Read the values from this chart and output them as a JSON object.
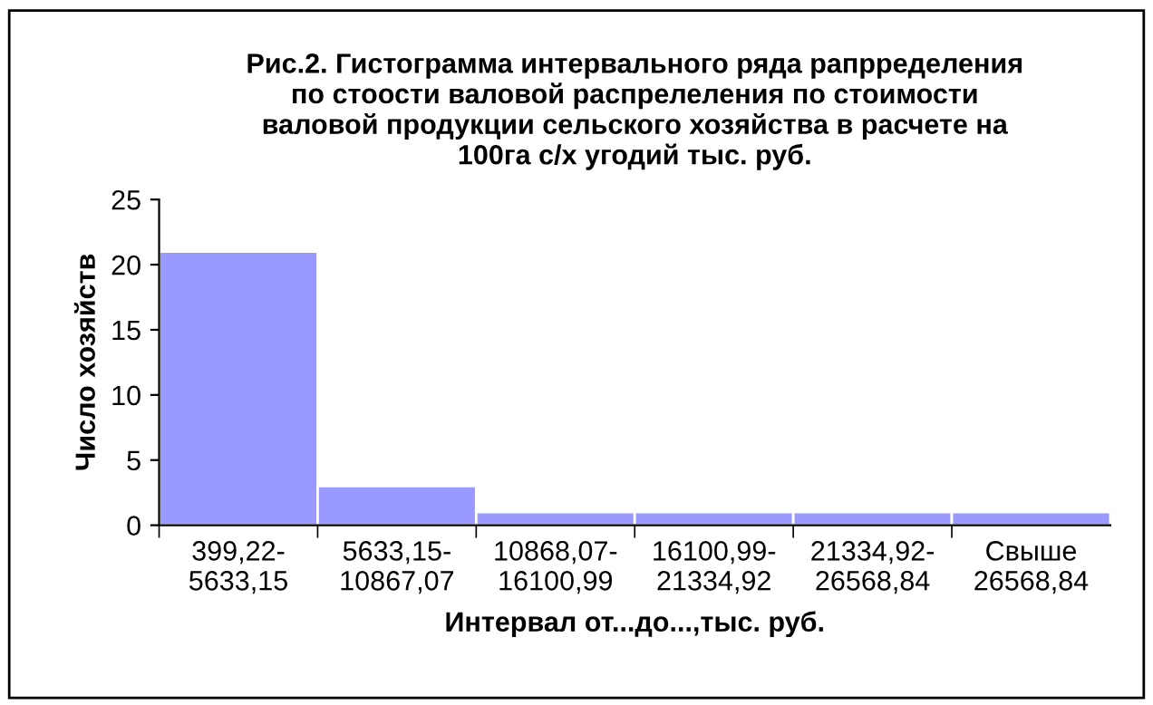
{
  "chart_data": {
    "type": "bar",
    "title": "Рис.2. Гистограмма интервального ряда рапрределения\nпо стоости валовой распрелеления по стоимости\nваловой продукции сельского хозяйства в расчете на\n100га с/х угодий тыс. руб.",
    "xlabel": "Интервал от...до...,тыс. руб.",
    "ylabel": "Число хозяйств",
    "categories": [
      "399,22-\n5633,15",
      "5633,15-\n10867,07",
      "10868,07-\n16100,99",
      "16100,99-\n21334,92",
      "21334,92-\n26568,84",
      "Свыше\n26568,84"
    ],
    "values": [
      21,
      3,
      1,
      1,
      1,
      1
    ],
    "color": "#9999ff",
    "ylim": [
      0,
      25
    ],
    "yticks": [
      0,
      5,
      10,
      15,
      20,
      25
    ],
    "grid": false,
    "legend": false
  }
}
